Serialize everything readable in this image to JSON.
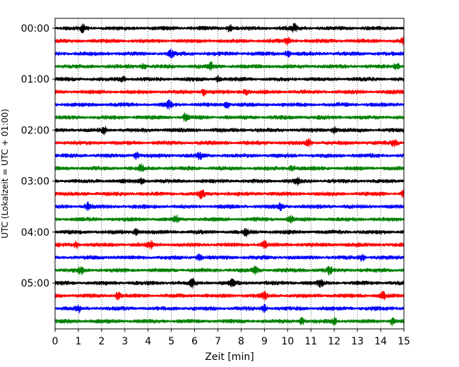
{
  "chart_data": {
    "type": "line",
    "title": "",
    "xlabel": "Zeit  [min]",
    "ylabel": "UTC (Lokalzeit = UTC + 01:00)",
    "xlim": [
      0,
      15
    ],
    "x_ticks": [
      0,
      1,
      2,
      3,
      4,
      5,
      6,
      7,
      8,
      9,
      10,
      11,
      12,
      13,
      14,
      15
    ],
    "x_grid": "dotted vertical lines at each minute",
    "y_tick_labels": [
      "00:00",
      "01:00",
      "02:00",
      "03:00",
      "04:00",
      "05:00"
    ],
    "trace_interval_minutes": 15,
    "trace_count": 24,
    "color_cycle": [
      "#000000",
      "#ff0000",
      "#0000ff",
      "#008000"
    ],
    "series": [
      {
        "start": "00:00",
        "color": "#000000",
        "bursts": [
          1.2,
          7.5,
          10.3
        ]
      },
      {
        "start": "00:15",
        "color": "#ff0000",
        "bursts": [
          10.0,
          15.0
        ]
      },
      {
        "start": "00:30",
        "color": "#0000ff",
        "bursts": [
          5.0,
          10.0
        ]
      },
      {
        "start": "00:45",
        "color": "#008000",
        "bursts": [
          3.8,
          6.7,
          14.7
        ]
      },
      {
        "start": "01:00",
        "color": "#000000",
        "bursts": [
          2.9,
          7.0
        ]
      },
      {
        "start": "01:15",
        "color": "#ff0000",
        "bursts": [
          6.4,
          8.2
        ]
      },
      {
        "start": "01:30",
        "color": "#0000ff",
        "bursts": [
          4.9,
          7.4
        ]
      },
      {
        "start": "01:45",
        "color": "#008000",
        "bursts": [
          5.6
        ]
      },
      {
        "start": "02:00",
        "color": "#000000",
        "bursts": [
          2.1,
          12.0
        ]
      },
      {
        "start": "02:15",
        "color": "#ff0000",
        "bursts": [
          10.9,
          14.6
        ]
      },
      {
        "start": "02:30",
        "color": "#0000ff",
        "bursts": [
          3.5,
          6.2
        ]
      },
      {
        "start": "02:45",
        "color": "#008000",
        "bursts": [
          3.7,
          10.2
        ]
      },
      {
        "start": "03:00",
        "color": "#000000",
        "bursts": [
          3.7,
          10.4
        ]
      },
      {
        "start": "03:15",
        "color": "#ff0000",
        "bursts": [
          6.3,
          15.0
        ]
      },
      {
        "start": "03:30",
        "color": "#0000ff",
        "bursts": [
          1.4,
          9.7
        ]
      },
      {
        "start": "03:45",
        "color": "#008000",
        "bursts": [
          5.2,
          10.1
        ]
      },
      {
        "start": "04:00",
        "color": "#000000",
        "bursts": [
          3.5,
          8.2
        ]
      },
      {
        "start": "04:15",
        "color": "#ff0000",
        "bursts": [
          0.9,
          4.1,
          9.0
        ]
      },
      {
        "start": "04:30",
        "color": "#0000ff",
        "bursts": [
          6.2,
          13.2
        ]
      },
      {
        "start": "04:45",
        "color": "#008000",
        "bursts": [
          1.1,
          8.6,
          11.8
        ]
      },
      {
        "start": "05:00",
        "color": "#000000",
        "bursts": [
          5.9,
          7.6,
          11.4
        ]
      },
      {
        "start": "05:15",
        "color": "#ff0000",
        "bursts": [
          2.7,
          9.0,
          14.1
        ]
      },
      {
        "start": "05:30",
        "color": "#0000ff",
        "bursts": [
          1.0,
          9.0
        ]
      },
      {
        "start": "05:45",
        "color": "#008000",
        "bursts": [
          10.6,
          12.0,
          14.5
        ]
      }
    ]
  }
}
